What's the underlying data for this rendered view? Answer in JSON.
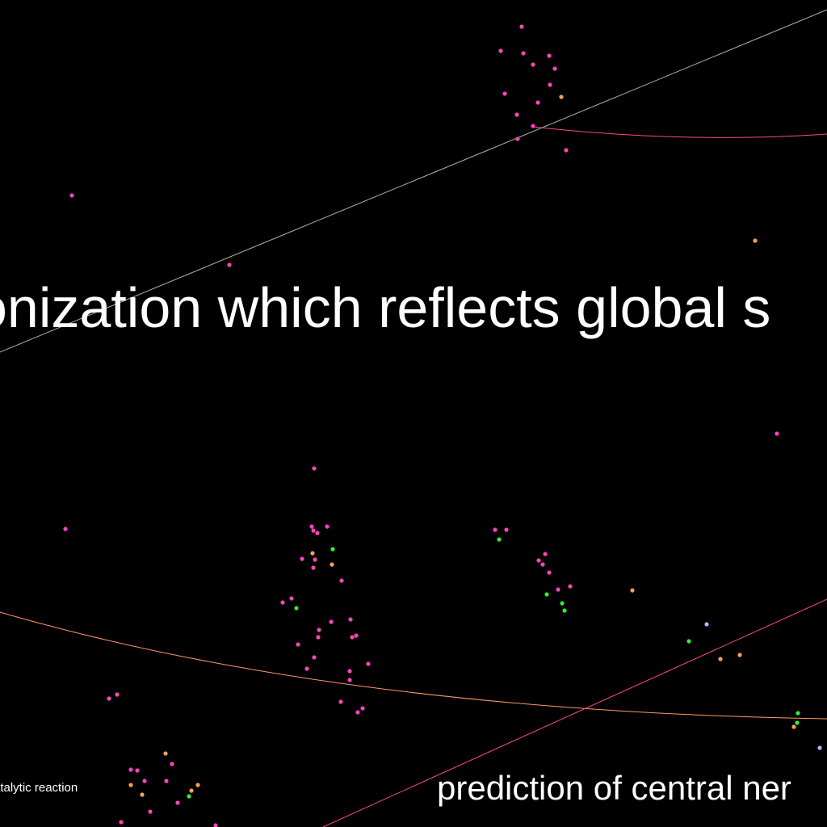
{
  "labels": {
    "main": "onization which reflects global s",
    "bottom_right": "prediction of central ner",
    "bottom_left": "atalytic reaction"
  },
  "colors": {
    "background": "#000000",
    "text": "#ffffff",
    "pink": "#ff44bb",
    "orange": "#ffa050",
    "green": "#33ee33",
    "lavender": "#c0b0ff",
    "curve_gray": "#aab888",
    "curve_pink": "#ff4499",
    "curve_orange": "#ff9a66"
  }
}
